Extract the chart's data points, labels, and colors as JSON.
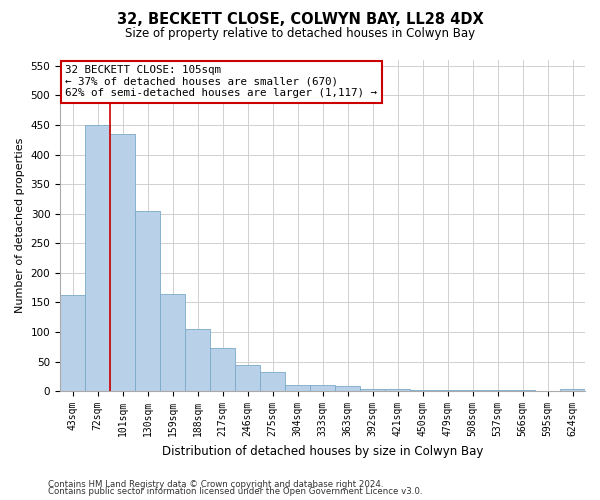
{
  "title": "32, BECKETT CLOSE, COLWYN BAY, LL28 4DX",
  "subtitle": "Size of property relative to detached houses in Colwyn Bay",
  "xlabel": "Distribution of detached houses by size in Colwyn Bay",
  "ylabel": "Number of detached properties",
  "categories": [
    "43sqm",
    "72sqm",
    "101sqm",
    "130sqm",
    "159sqm",
    "188sqm",
    "217sqm",
    "246sqm",
    "275sqm",
    "304sqm",
    "333sqm",
    "363sqm",
    "392sqm",
    "421sqm",
    "450sqm",
    "479sqm",
    "508sqm",
    "537sqm",
    "566sqm",
    "595sqm",
    "624sqm"
  ],
  "values": [
    162,
    450,
    435,
    305,
    165,
    105,
    73,
    44,
    33,
    10,
    10,
    8,
    4,
    3,
    2,
    2,
    2,
    2,
    2,
    1,
    3
  ],
  "bar_color": "#b8d0e8",
  "bar_edge_color": "#7aaac8",
  "marker_line_index": 2,
  "marker_label": "32 BECKETT CLOSE: 105sqm",
  "marker_detail1": "← 37% of detached houses are smaller (670)",
  "marker_detail2": "62% of semi-detached houses are larger (1,117) →",
  "annotation_box_color": "#ffffff",
  "annotation_box_edge": "#cc0000",
  "marker_line_color": "#cc0000",
  "footer1": "Contains HM Land Registry data © Crown copyright and database right 2024.",
  "footer2": "Contains public sector information licensed under the Open Government Licence v3.0.",
  "ylim": [
    0,
    560
  ],
  "yticks": [
    0,
    50,
    100,
    150,
    200,
    250,
    300,
    350,
    400,
    450,
    500,
    550
  ],
  "background_color": "#ffffff",
  "grid_color": "#d0d0d0"
}
